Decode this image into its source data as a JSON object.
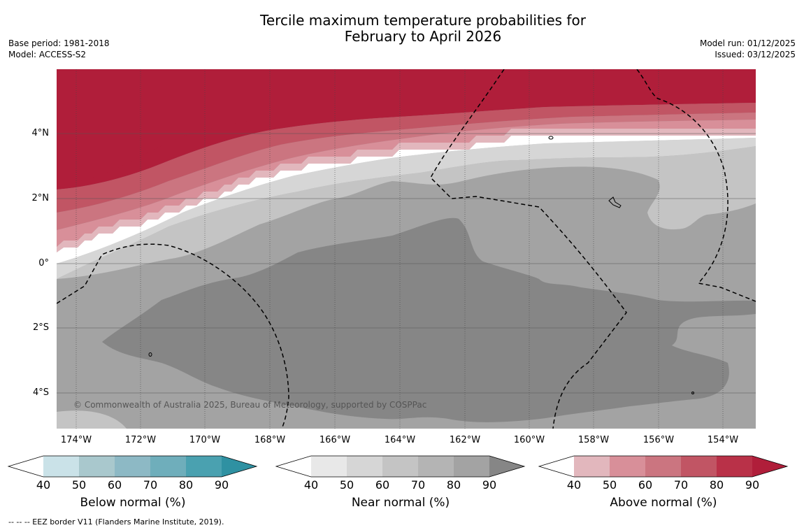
{
  "title_line1": "Tercile maximum temperature probabilities for",
  "title_line2": "February to April 2026",
  "base_period": "Base period: 1981-2018",
  "model": "Model: ACCESS-S2",
  "model_run": "Model run: 01/12/2025",
  "issued": "Issued: 03/12/2025",
  "lat_labels": [
    "4°N",
    "2°N",
    "0°",
    "2°S",
    "4°S"
  ],
  "lon_labels": [
    "174°W",
    "172°W",
    "170°W",
    "168°W",
    "166°W",
    "164°W",
    "162°W",
    "160°W",
    "158°W",
    "156°W",
    "154°W"
  ],
  "copyright": "© Commonwealth of Australia 2025, Bureau of Meteorology, supported by COSPPac",
  "colorbars": {
    "below": {
      "label": "Below normal (%)",
      "colors": [
        "#ffffff",
        "#cae2e8",
        "#a9c8cd",
        "#8db9c5",
        "#6faebb",
        "#4aa1b0",
        "#2f91a2"
      ]
    },
    "near": {
      "label": "Near normal (%)",
      "colors": [
        "#ffffff",
        "#e8e8e8",
        "#d6d6d6",
        "#c4c4c4",
        "#b4b4b4",
        "#a3a3a3",
        "#868686"
      ]
    },
    "above": {
      "label": "Above normal (%)",
      "colors": [
        "#ffffff",
        "#e2b7bd",
        "#d88f99",
        "#cb7580",
        "#c15564",
        "#b93148",
        "#b01e3a"
      ]
    }
  },
  "ticks": [
    "40",
    "50",
    "60",
    "70",
    "80",
    "90"
  ],
  "footnote": "--  --  -- EEZ border V11 (Flanders Marine Institute, 2019)."
}
